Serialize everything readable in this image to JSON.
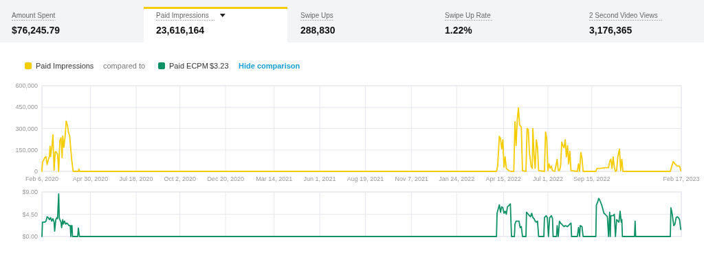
{
  "chart_data": [
    {
      "type": "other",
      "annotations": [
        "Amount Spent",
        "$76,245.79",
        "Paid Impressions",
        "23,616,164",
        "Swipe Ups",
        "288,830",
        "Swipe Up Rate",
        "1.22%",
        "2 Second Video Views",
        "3,176,365"
      ]
    },
    {
      "type": "line",
      "legend": "top left",
      "grid": true,
      "annotations": [
        "compared to"
      ],
      "xlim": [
        "2020-02-06",
        "2023-02-17"
      ],
      "xticks": [
        {
          "value": "2020-02-06",
          "label": "Feb 6, 2020"
        },
        {
          "value": "2020-04-30",
          "label": "Apr 30, 2020"
        },
        {
          "value": "2020-07-18",
          "label": "Jul 18, 2020"
        },
        {
          "value": "2020-10-02",
          "label": "Oct 2, 2020"
        },
        {
          "value": "2020-12-20",
          "label": "Dec 20, 2020"
        },
        {
          "value": "2021-03-14",
          "label": "Mar 14, 2021"
        },
        {
          "value": "2021-06-01",
          "label": "Jun 1, 2021"
        },
        {
          "value": "2021-08-19",
          "label": "Aug 19, 2021"
        },
        {
          "value": "2021-11-07",
          "label": "Nov 7, 2021"
        },
        {
          "value": "2022-01-24",
          "label": "Jan 24, 2022"
        },
        {
          "value": "2022-04-15",
          "label": "Apr 15, 2022"
        },
        {
          "value": "2022-07-01",
          "label": "Jul 1, 2022"
        },
        {
          "value": "2022-09-15",
          "label": "Sep 15, 2022"
        },
        {
          "value": "2023-02-17",
          "label": "Feb 17, 2023"
        }
      ],
      "ylim": [
        0,
        600000
      ],
      "yticks": [
        0,
        {
          "value": 150000,
          "label": "150,000"
        },
        {
          "value": 300000,
          "label": "300,000"
        },
        {
          "value": 450000,
          "label": "450,000"
        },
        {
          "value": 600000,
          "label": "600,000"
        }
      ],
      "series": [
        {
          "name": "Paid Impressions",
          "color": "#f5cc00",
          "x": [
            "2020-02-06",
            "2020-02-07",
            "2020-02-11",
            "2020-02-13",
            "2020-02-15",
            "2020-02-17",
            "2020-02-19",
            "2020-02-20",
            "2020-02-21",
            "2020-02-24",
            "2020-02-25",
            "2020-02-27",
            "2020-02-29",
            "2020-03-01",
            "2020-03-04",
            "2020-03-06",
            "2020-03-08",
            "2020-03-10",
            "2020-03-12",
            "2020-03-13",
            "2020-03-15",
            "2020-03-17",
            "2020-03-19",
            "2020-03-21",
            "2020-03-23",
            "2020-03-25",
            "2020-03-27",
            "2020-03-29",
            "2020-03-31",
            "2020-04-09",
            "2020-04-10",
            "2020-04-11",
            "2022-04-03",
            "2022-04-05",
            "2022-04-08",
            "2022-04-10",
            "2022-04-12",
            "2022-04-14",
            "2022-04-16",
            "2022-04-18",
            "2022-04-20",
            "2022-04-24",
            "2022-04-28",
            "2022-05-03",
            "2022-05-05",
            "2022-05-07",
            "2022-05-09",
            "2022-05-11",
            "2022-05-13",
            "2022-05-16",
            "2022-05-18",
            "2022-05-24",
            "2022-05-26",
            "2022-05-28",
            "2022-05-30",
            "2022-06-02",
            "2022-06-04",
            "2022-06-05",
            "2022-06-07",
            "2022-06-09",
            "2022-06-11",
            "2022-06-13",
            "2022-06-15",
            "2022-06-25",
            "2022-06-27",
            "2022-06-29",
            "2022-07-01",
            "2022-07-03",
            "2022-07-05",
            "2022-07-07",
            "2022-07-09",
            "2022-07-13",
            "2022-07-17",
            "2022-07-19",
            "2022-07-21",
            "2022-07-23",
            "2022-07-25",
            "2022-07-27",
            "2022-07-29",
            "2022-07-31",
            "2022-08-02",
            "2022-08-04",
            "2022-08-06",
            "2022-08-08",
            "2022-08-10",
            "2022-08-21",
            "2022-08-23",
            "2022-08-25",
            "2022-08-27",
            "2022-08-29",
            "2022-08-31",
            "2022-09-22",
            "2022-09-24",
            "2022-09-30",
            "2022-10-08",
            "2022-10-14",
            "2022-10-16",
            "2022-10-18",
            "2022-10-20",
            "2022-10-22",
            "2022-10-24",
            "2022-10-26",
            "2022-10-28",
            "2022-10-30",
            "2022-11-02",
            "2022-11-04",
            "2022-11-06",
            "2022-11-08",
            "2023-01-29",
            "2023-01-31",
            "2023-02-03",
            "2023-02-06",
            "2023-02-10",
            "2023-02-14",
            "2023-02-16"
          ],
          "values": [
            0,
            64000,
            96000,
            104000,
            48000,
            80000,
            104000,
            176000,
            104000,
            200000,
            256000,
            8000,
            136000,
            139000,
            120000,
            0,
            216000,
            235000,
            96000,
            248000,
            168000,
            240000,
            352000,
            328000,
            272000,
            248000,
            152000,
            64000,
            0,
            0,
            16000,
            0,
            0,
            37000,
            245000,
            229000,
            157000,
            221000,
            29000,
            101000,
            21000,
            5000,
            0,
            0,
            349000,
            181000,
            365000,
            445000,
            325000,
            309000,
            5000,
            0,
            301000,
            293000,
            133000,
            37000,
            21000,
            301000,
            117000,
            21000,
            221000,
            165000,
            5000,
            0,
            277000,
            229000,
            5000,
            53000,
            21000,
            37000,
            5000,
            0,
            85000,
            5000,
            5000,
            37000,
            205000,
            181000,
            165000,
            221000,
            101000,
            181000,
            53000,
            141000,
            5000,
            0,
            53000,
            0,
            133000,
            93000,
            0,
            0,
            21000,
            21000,
            26000,
            26000,
            69000,
            85000,
            21000,
            101000,
            29000,
            0,
            5000,
            101000,
            157000,
            5000,
            85000,
            0,
            0,
            29000,
            69000,
            53000,
            37000,
            37000,
            5000
          ]
        }
      ]
    },
    {
      "type": "line",
      "legend": "top left",
      "grid": true,
      "tick_labels": "y",
      "annotations": [
        "$3.23",
        "Hide comparison"
      ],
      "xlim": [
        "2020-02-06",
        "2023-02-17"
      ],
      "xticks": [
        {
          "value": "2020-02-06",
          "label": null
        },
        {
          "value": "2020-04-30",
          "label": null
        },
        {
          "value": "2020-07-18",
          "label": null
        },
        {
          "value": "2020-10-02",
          "label": null
        },
        {
          "value": "2020-12-20",
          "label": null
        },
        {
          "value": "2021-03-14",
          "label": null
        },
        {
          "value": "2021-06-01",
          "label": null
        },
        {
          "value": "2021-08-19",
          "label": null
        },
        {
          "value": "2021-11-07",
          "label": null
        },
        {
          "value": "2022-01-24",
          "label": null
        },
        {
          "value": "2022-04-15",
          "label": null
        },
        {
          "value": "2022-07-01",
          "label": null
        },
        {
          "value": "2022-09-15",
          "label": null
        },
        {
          "value": "2023-02-17",
          "label": null
        }
      ],
      "ylim": [
        0,
        9
      ],
      "yticks": [
        {
          "value": 0,
          "label": "$0.00"
        },
        {
          "value": 4.5,
          "label": "$4.50"
        },
        {
          "value": 9,
          "label": "$9.00"
        }
      ],
      "series": [
        {
          "name": "Paid ECPM",
          "color": "#0f9166",
          "x": [
            "2020-02-06",
            "2020-02-07",
            "2020-02-11",
            "2020-02-13",
            "2020-02-15",
            "2020-02-17",
            "2020-02-19",
            "2020-02-21",
            "2020-02-23",
            "2020-02-25",
            "2020-02-27",
            "2020-02-28",
            "2020-03-01",
            "2020-03-03",
            "2020-03-04",
            "2020-03-06",
            "2020-03-07",
            "2020-03-08",
            "2020-03-10",
            "2020-03-11",
            "2020-03-13",
            "2020-03-14",
            "2020-03-16",
            "2020-03-18",
            "2020-03-20",
            "2020-03-22",
            "2020-03-24",
            "2020-03-26",
            "2020-03-27",
            "2020-03-28",
            "2020-03-29",
            "2020-03-30",
            "2020-04-08",
            "2020-04-09",
            "2020-04-11",
            "2022-04-03",
            "2022-04-04",
            "2022-04-07",
            "2022-04-08",
            "2022-04-10",
            "2022-04-12",
            "2022-04-14",
            "2022-04-16",
            "2022-04-18",
            "2022-04-20",
            "2022-04-22",
            "2022-04-24",
            "2022-04-27",
            "2022-04-29",
            "2022-05-04",
            "2022-05-05",
            "2022-05-07",
            "2022-05-10",
            "2022-05-12",
            "2022-05-14",
            "2022-05-16",
            "2022-05-18",
            "2022-05-24",
            "2022-05-25",
            "2022-05-28",
            "2022-05-30",
            "2022-06-01",
            "2022-06-03",
            "2022-06-05",
            "2022-06-07",
            "2022-06-09",
            "2022-06-11",
            "2022-06-13",
            "2022-06-15",
            "2022-06-24",
            "2022-06-25",
            "2022-06-28",
            "2022-06-30",
            "2022-07-02",
            "2022-07-04",
            "2022-07-07",
            "2022-07-09",
            "2022-07-10",
            "2022-07-16",
            "2022-07-17",
            "2022-07-19",
            "2022-07-21",
            "2022-07-23",
            "2022-07-25",
            "2022-07-27",
            "2022-07-29",
            "2022-07-31",
            "2022-08-04",
            "2022-08-08",
            "2022-08-10",
            "2022-08-11",
            "2022-08-21",
            "2022-08-23",
            "2022-08-25",
            "2022-08-26",
            "2022-08-29",
            "2022-08-31",
            "2022-09-22",
            "2022-09-23",
            "2022-09-25",
            "2022-09-27",
            "2022-09-29",
            "2022-10-02",
            "2022-10-04",
            "2022-10-06",
            "2022-10-08",
            "2022-10-12",
            "2022-10-14",
            "2022-10-16",
            "2022-10-17",
            "2022-10-18",
            "2022-10-22",
            "2022-10-24",
            "2022-10-26",
            "2022-10-28",
            "2022-11-01",
            "2022-11-03",
            "2022-11-05",
            "2022-11-06",
            "2022-11-07",
            "2022-11-28",
            "2022-11-29",
            "2022-11-30",
            "2023-01-29",
            "2023-01-30",
            "2023-02-01",
            "2023-02-04",
            "2023-02-06",
            "2023-02-08",
            "2023-02-10",
            "2023-02-12",
            "2023-02-14",
            "2023-02-16"
          ],
          "values": [
            0,
            2.9,
            2.9,
            3.1,
            4.0,
            3.8,
            3.4,
            3.8,
            3.1,
            3.6,
            2.9,
            1.1,
            3.4,
            3.8,
            3.6,
            8.6,
            3.8,
            3.4,
            2.9,
            1.8,
            3.4,
            2.5,
            3.1,
            2.5,
            2.7,
            2.5,
            2.2,
            2.2,
            0,
            2.2,
            2.2,
            0,
            0,
            1.7,
            0,
            0,
            4.7,
            6.0,
            6.4,
            4.9,
            6.0,
            5.8,
            4.7,
            5.1,
            4.5,
            6.0,
            6.2,
            6.6,
            0,
            0,
            2.5,
            3.1,
            3.1,
            3.1,
            1.8,
            2.0,
            0,
            0,
            4.9,
            4.5,
            4.2,
            4.0,
            4.7,
            3.8,
            3.6,
            3.1,
            2.9,
            3.1,
            0,
            0,
            3.8,
            4.2,
            3.8,
            0,
            3.8,
            4.2,
            3.6,
            0,
            0,
            2.2,
            0,
            3.1,
            2.7,
            2.5,
            2.2,
            2.0,
            2.2,
            2.0,
            2.5,
            2.7,
            0,
            0,
            1.8,
            0,
            2.2,
            2.0,
            0,
            0,
            6.4,
            6.9,
            7.7,
            7.3,
            6.4,
            5.6,
            4.7,
            4.5,
            4.0,
            0,
            4.9,
            0,
            4.2,
            4.2,
            4.5,
            0,
            3.4,
            2.9,
            5.1,
            2.9,
            3.4,
            0,
            0,
            3.1,
            0,
            0,
            5.8,
            4.7,
            2.2,
            2.5,
            3.8,
            4.0,
            3.8,
            3.4,
            1.4
          ]
        }
      ]
    }
  ]
}
